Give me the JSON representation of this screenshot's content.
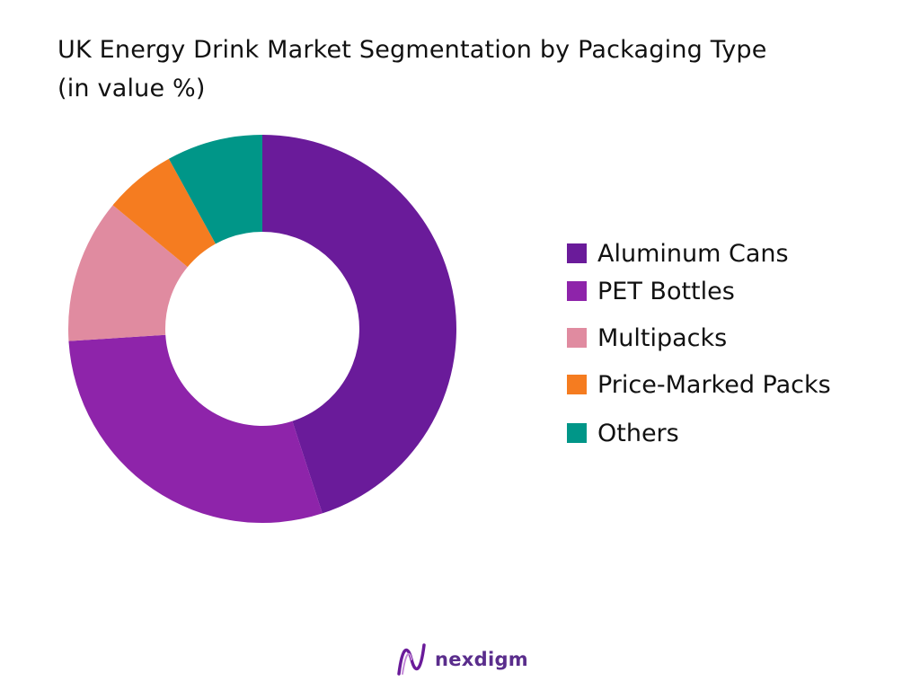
{
  "chart_data": {
    "type": "pie",
    "title_line1": "UK Energy Drink Market Segmentation by Packaging Type",
    "title_line2": "(in value %)",
    "categories": [
      "Aluminum Cans",
      "PET Bottles",
      "Multipacks",
      "Price-Marked Packs",
      "Others"
    ],
    "values": [
      45,
      29,
      12,
      6,
      8
    ],
    "colors": [
      "#6a1b9a",
      "#8e24aa",
      "#e08ba0",
      "#f57c20",
      "#009688"
    ],
    "donut": true,
    "legend_position": "right"
  },
  "brand": {
    "name": "nexdigm",
    "logo_icon": "nexdigm-wave-icon",
    "color": "#5a2d8c"
  }
}
